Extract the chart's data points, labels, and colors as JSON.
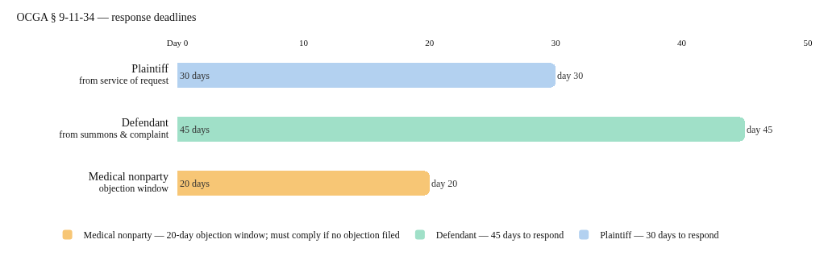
{
  "chart_data": {
    "type": "bar",
    "orientation": "horizontal",
    "stacked": true,
    "title": "OCGA § 9-11-34 — response deadlines",
    "categories": [
      "Plaintiff\nfrom service of request",
      "Defendant\nfrom summons & complaint",
      "Medical nonparty\nobjection window"
    ],
    "series": [
      {
        "name": "Plaintiff — 30 days to respond",
        "color": "#b3d1f0",
        "values": [
          30,
          null,
          null
        ],
        "value_labels": [
          "30 days",
          null,
          null
        ]
      },
      {
        "name": "Defendant — 45 days to respond",
        "color": "#a0e0c8",
        "values": [
          null,
          45,
          null
        ],
        "value_labels": [
          null,
          "45 days",
          null
        ]
      },
      {
        "name": "Medical nonparty — 20-day objection window; must comply if no objection filed",
        "color": "#f7c675",
        "values": [
          null,
          null,
          20
        ],
        "value_labels": [
          null,
          null,
          "20 days"
        ]
      }
    ],
    "annotations": [
      {
        "text": "day 30",
        "x": 30,
        "y": "Plaintiff\nfrom service of request"
      },
      {
        "text": "day 45",
        "x": 45,
        "y": "Defendant\nfrom summons & complaint"
      },
      {
        "text": "day 20",
        "x": 20,
        "y": "Medical nonparty\nobjection window"
      }
    ],
    "xlim": [
      0,
      50
    ],
    "xticks": [
      {
        "value": 0,
        "label": "Day 0"
      },
      10,
      20,
      30,
      40,
      50
    ],
    "grid": false,
    "legend": "bottom left"
  }
}
